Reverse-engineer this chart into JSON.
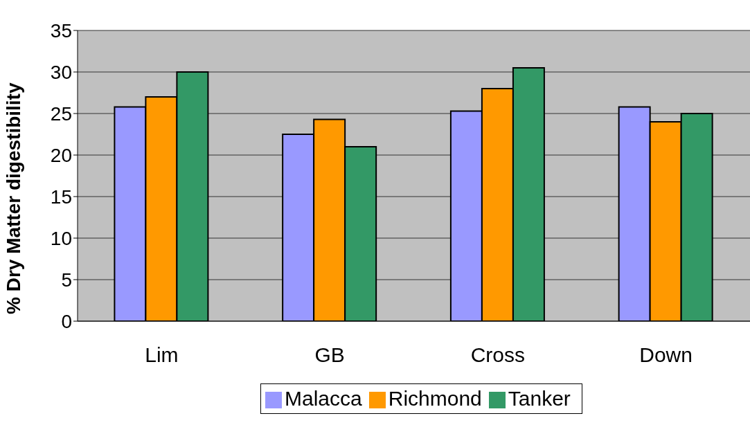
{
  "chart_data": {
    "type": "bar",
    "ylabel": "% Dry Matter digestibility",
    "categories": [
      "Lim",
      "GB",
      "Cross",
      "Down"
    ],
    "series": [
      {
        "name": "Malacca",
        "color": "#9999ff",
        "values": [
          25.8,
          22.5,
          25.3,
          25.8
        ]
      },
      {
        "name": "Richmond",
        "color": "#ff9900",
        "values": [
          27.0,
          24.3,
          28.0,
          24.0
        ]
      },
      {
        "name": "Tanker",
        "color": "#339966",
        "values": [
          30.0,
          21.0,
          30.5,
          25.0
        ]
      }
    ],
    "ylim": [
      0,
      35
    ],
    "yticks": [
      0,
      5,
      10,
      15,
      20,
      25,
      30,
      35
    ],
    "grid": "y",
    "legend": "bottom"
  }
}
